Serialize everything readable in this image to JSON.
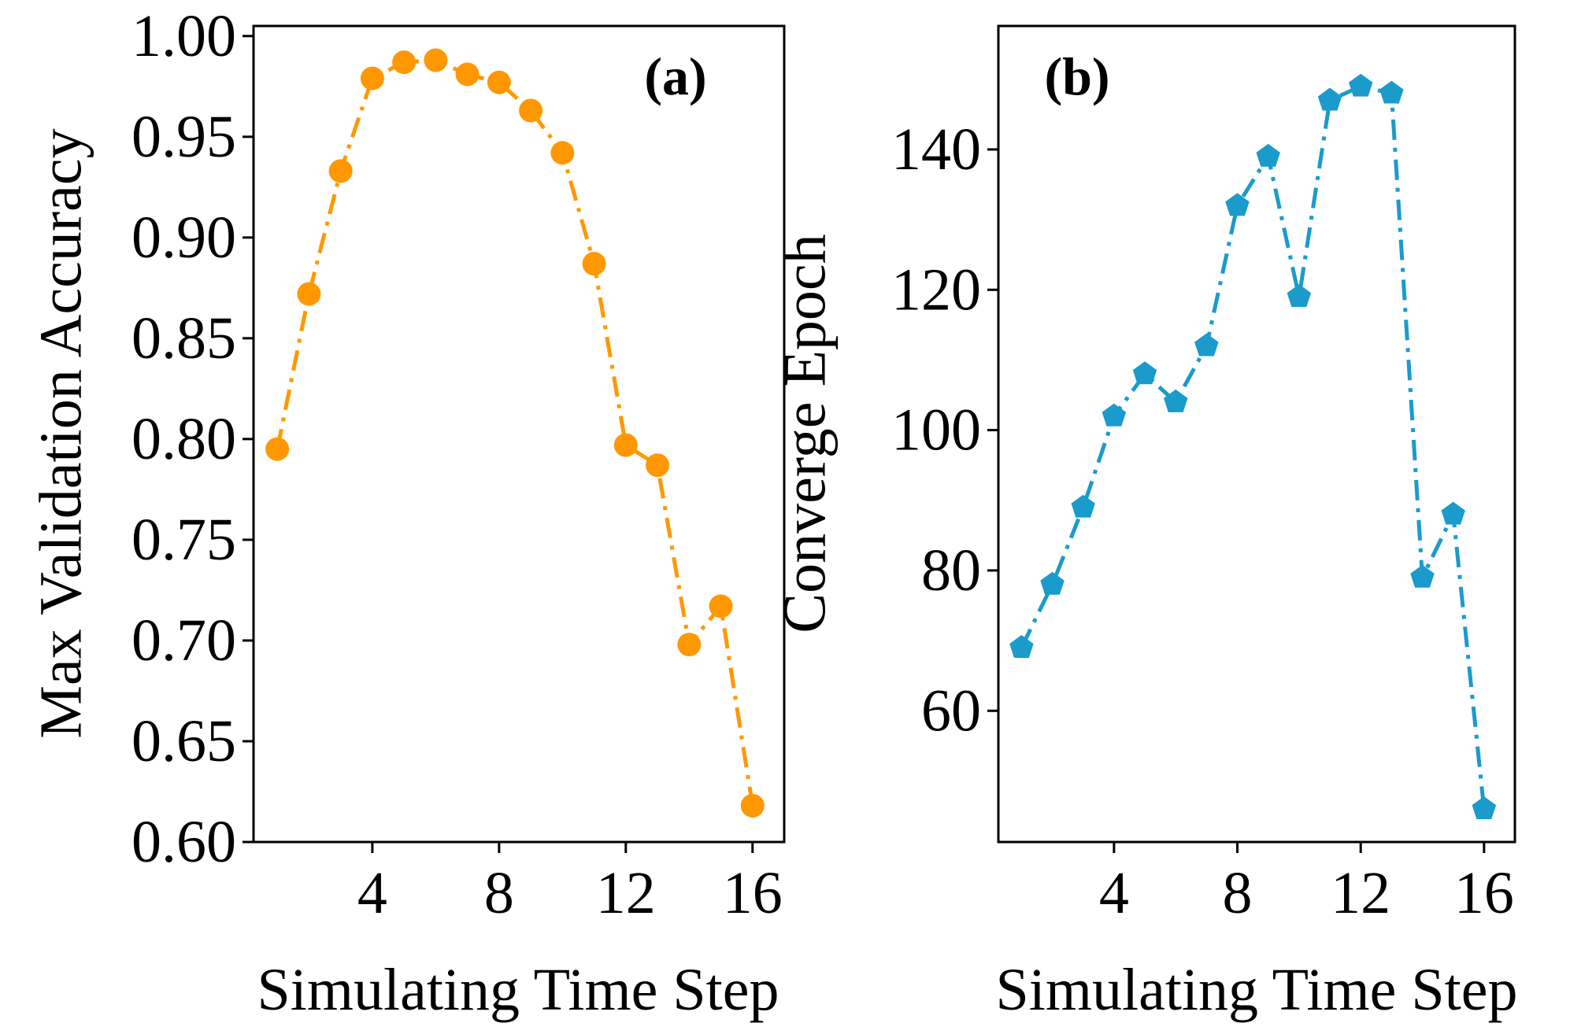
{
  "chart_data": [
    {
      "type": "line",
      "panel_label": "(a)",
      "xlabel": "Simulating Time Step",
      "ylabel": "Max Validation Accuracy",
      "x_ticks": [
        "4",
        "8",
        "12",
        "16"
      ],
      "y_ticks": [
        "0.60",
        "0.65",
        "0.70",
        "0.75",
        "0.80",
        "0.85",
        "0.90",
        "0.95",
        "1.00"
      ],
      "xlim": [
        0.25,
        17.0
      ],
      "ylim": [
        0.6,
        1.005
      ],
      "grid": false,
      "marker": "circle",
      "line_style": "dash-dot",
      "color": "#FF9800",
      "series": [
        {
          "x": [
            1,
            2,
            3,
            4,
            5,
            6,
            7,
            8,
            9,
            10,
            11,
            12,
            13,
            14,
            15,
            16
          ],
          "values": [
            0.795,
            0.872,
            0.933,
            0.979,
            0.987,
            0.988,
            0.981,
            0.977,
            0.963,
            0.942,
            0.887,
            0.797,
            0.787,
            0.698,
            0.717,
            0.618
          ]
        }
      ]
    },
    {
      "type": "line",
      "panel_label": "(b)",
      "xlabel": "Simulating Time Step",
      "ylabel": "Converge Epoch",
      "x_ticks": [
        "4",
        "8",
        "12",
        "16"
      ],
      "y_ticks": [
        "60",
        "80",
        "100",
        "120",
        "140"
      ],
      "xlim": [
        0.25,
        17.0
      ],
      "ylim": [
        41.3,
        157.6
      ],
      "grid": false,
      "marker": "pentagon",
      "line_style": "dash-dot",
      "color": "#1A9BCC",
      "series": [
        {
          "x": [
            1,
            2,
            3,
            4,
            5,
            6,
            7,
            8,
            9,
            10,
            11,
            12,
            13,
            14,
            15,
            16
          ],
          "values": [
            69,
            78,
            89,
            102,
            108,
            104,
            112,
            132,
            139,
            119,
            147,
            149,
            148,
            79,
            88,
            46
          ]
        }
      ]
    }
  ]
}
